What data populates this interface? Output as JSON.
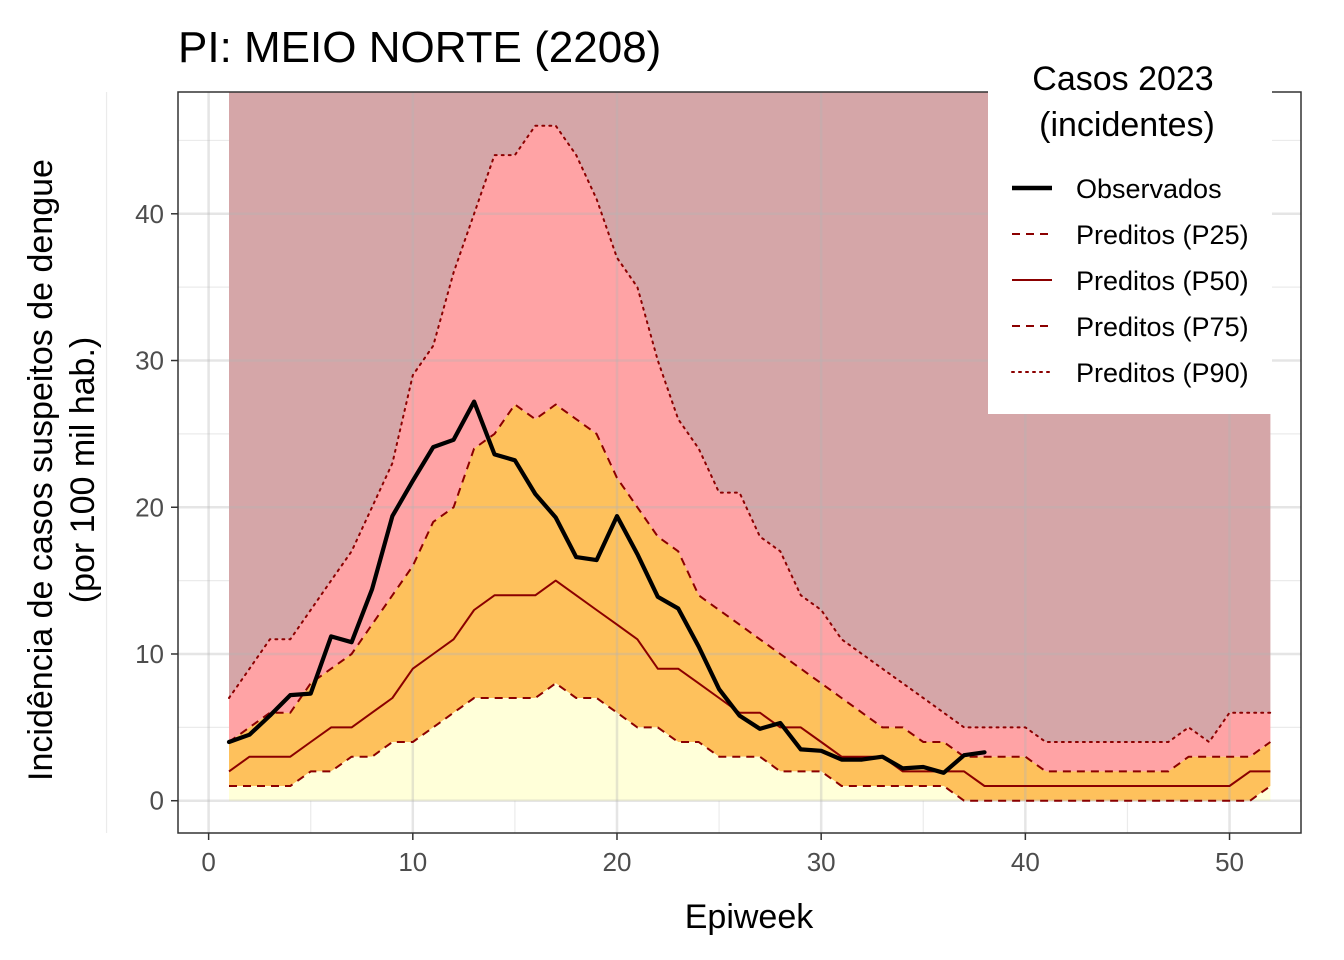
{
  "chart_data": {
    "type": "line",
    "title": "PI: MEIO NORTE (2208)",
    "xlabel": "Epiweek",
    "ylabel_line1": "Incidência de casos suspeitos de dengue",
    "ylabel_line2": "(por 100 mil hab.)",
    "xlim": [
      -1.5,
      53.5
    ],
    "ylim": [
      -2.2,
      48.3
    ],
    "x_ticks": [
      0,
      10,
      20,
      30,
      40,
      50
    ],
    "y_ticks": [
      0,
      10,
      20,
      30,
      40
    ],
    "x_tick_labels": [
      "0",
      "10",
      "20",
      "30",
      "40",
      "50"
    ],
    "y_tick_labels": [
      "0",
      "10",
      "20",
      "30",
      "40"
    ],
    "grid": true,
    "legend": {
      "title_line1": "Casos 2023",
      "title_line2": "(incidentes)",
      "placement": "top-right",
      "entries": [
        {
          "label": "Observados",
          "style": "solid-thick",
          "color": "#000000"
        },
        {
          "label": "Preditos (P25)",
          "style": "dashed",
          "color": "#8b0000"
        },
        {
          "label": "Preditos (P50)",
          "style": "solid",
          "color": "#8b0000"
        },
        {
          "label": "Preditos (P75)",
          "style": "dashed",
          "color": "#8b0000"
        },
        {
          "label": "Preditos (P90)",
          "style": "dotted",
          "color": "#8b0000"
        }
      ]
    },
    "band_colors": {
      "above_p90": "#d5a6a8",
      "p75_p90": "#ffa3a5",
      "p25_p75": "#fec15c",
      "below_p25": "#ffffd9"
    },
    "band_top": 48.3,
    "x": [
      1,
      2,
      3,
      4,
      5,
      6,
      7,
      8,
      9,
      10,
      11,
      12,
      13,
      14,
      15,
      16,
      17,
      18,
      19,
      20,
      21,
      22,
      23,
      24,
      25,
      26,
      27,
      28,
      29,
      30,
      31,
      32,
      33,
      34,
      35,
      36,
      37,
      38,
      39,
      40,
      41,
      42,
      43,
      44,
      45,
      46,
      47,
      48,
      49,
      50,
      51,
      52
    ],
    "series": [
      {
        "name": "Preditos (P25)",
        "values": [
          1,
          1,
          1,
          1,
          2,
          2,
          3,
          3,
          4,
          4,
          5,
          6,
          7,
          7,
          7,
          7,
          8,
          7,
          7,
          6,
          5,
          5,
          4,
          4,
          3,
          3,
          3,
          2,
          2,
          2,
          1,
          1,
          1,
          1,
          1,
          1,
          0,
          0,
          0,
          0,
          0,
          0,
          0,
          0,
          0,
          0,
          0,
          0,
          0,
          0,
          0,
          1
        ]
      },
      {
        "name": "Preditos (P50)",
        "values": [
          2,
          3,
          3,
          3,
          4,
          5,
          5,
          6,
          7,
          9,
          10,
          11,
          13,
          14,
          14,
          14,
          15,
          14,
          13,
          12,
          11,
          9,
          9,
          8,
          7,
          6,
          6,
          5,
          5,
          4,
          3,
          3,
          3,
          2,
          2,
          2,
          2,
          1,
          1,
          1,
          1,
          1,
          1,
          1,
          1,
          1,
          1,
          1,
          1,
          1,
          2,
          2
        ]
      },
      {
        "name": "Preditos (P75)",
        "values": [
          4,
          5,
          6,
          6,
          8,
          9,
          10,
          12,
          14,
          16,
          19,
          20,
          24,
          25,
          27,
          26,
          27,
          26,
          25,
          22,
          20,
          18,
          17,
          14,
          13,
          12,
          11,
          10,
          9,
          8,
          7,
          6,
          5,
          5,
          4,
          4,
          3,
          3,
          3,
          3,
          2,
          2,
          2,
          2,
          2,
          2,
          2,
          3,
          3,
          3,
          3,
          4
        ]
      },
      {
        "name": "Preditos (P90)",
        "values": [
          7,
          9,
          11,
          11,
          13,
          15,
          17,
          20,
          23,
          29,
          31,
          36,
          40,
          44,
          44,
          46,
          46,
          44,
          41,
          37,
          35,
          30,
          26,
          24,
          21,
          21,
          18,
          17,
          14,
          13,
          11,
          10,
          9,
          8,
          7,
          6,
          5,
          5,
          5,
          5,
          4,
          4,
          4,
          4,
          4,
          4,
          4,
          5,
          4,
          6,
          6,
          6
        ]
      },
      {
        "name": "Observados",
        "x": [
          1,
          2,
          3,
          4,
          5,
          6,
          7,
          8,
          9,
          10,
          11,
          12,
          13,
          14,
          15,
          16,
          17,
          18,
          19,
          20,
          21,
          22,
          23,
          24,
          25,
          26,
          27,
          28,
          29,
          30,
          31,
          32,
          33,
          34,
          35,
          36,
          37,
          38
        ],
        "values": [
          4.0,
          4.5,
          5.8,
          7.2,
          7.3,
          11.2,
          10.8,
          14.4,
          19.4,
          21.8,
          24.1,
          24.6,
          27.2,
          23.6,
          23.2,
          20.9,
          19.3,
          16.6,
          16.4,
          19.4,
          16.8,
          13.9,
          13.1,
          10.5,
          7.6,
          5.8,
          4.9,
          5.3,
          3.5,
          3.4,
          2.8,
          2.8,
          3.0,
          2.2,
          2.3,
          1.9,
          3.1,
          3.3
        ]
      }
    ]
  }
}
